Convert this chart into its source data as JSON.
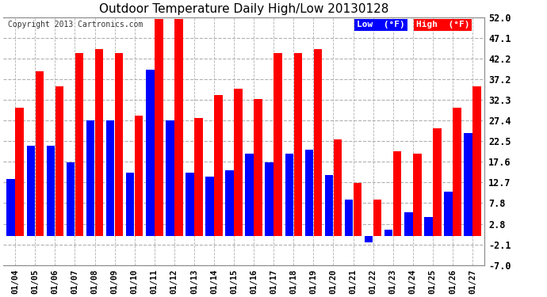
{
  "title": "Outdoor Temperature Daily High/Low 20130128",
  "copyright": "Copyright 2013 Cartronics.com",
  "dates": [
    "01/04",
    "01/05",
    "01/06",
    "01/07",
    "01/08",
    "01/09",
    "01/10",
    "01/11",
    "01/12",
    "01/13",
    "01/14",
    "01/15",
    "01/16",
    "01/17",
    "01/18",
    "01/19",
    "01/20",
    "01/21",
    "01/22",
    "01/23",
    "01/24",
    "01/25",
    "01/26",
    "01/27"
  ],
  "high": [
    30.5,
    39.2,
    35.6,
    43.5,
    44.5,
    43.5,
    28.5,
    51.5,
    51.5,
    28.0,
    33.5,
    35.0,
    32.5,
    43.5,
    43.5,
    44.5,
    23.0,
    12.5,
    8.5,
    20.0,
    19.5,
    25.5,
    30.5,
    35.5
  ],
  "low": [
    13.5,
    21.5,
    21.5,
    17.5,
    27.5,
    27.5,
    15.0,
    39.5,
    27.5,
    15.0,
    14.0,
    15.5,
    19.5,
    17.5,
    19.5,
    20.5,
    14.5,
    8.5,
    -1.5,
    1.5,
    5.5,
    4.5,
    10.5,
    24.5
  ],
  "high_color": "#ff0000",
  "low_color": "#0000ff",
  "bg_color": "#ffffff",
  "grid_color": "#b0b0b0",
  "ylim_min": -7.0,
  "ylim_max": 52.0,
  "yticks": [
    52.0,
    47.1,
    42.2,
    37.2,
    32.3,
    27.4,
    22.5,
    17.6,
    12.7,
    7.8,
    2.8,
    -2.1,
    -7.0
  ],
  "legend_low_label": "Low  (°F)",
  "legend_high_label": "High  (°F)"
}
